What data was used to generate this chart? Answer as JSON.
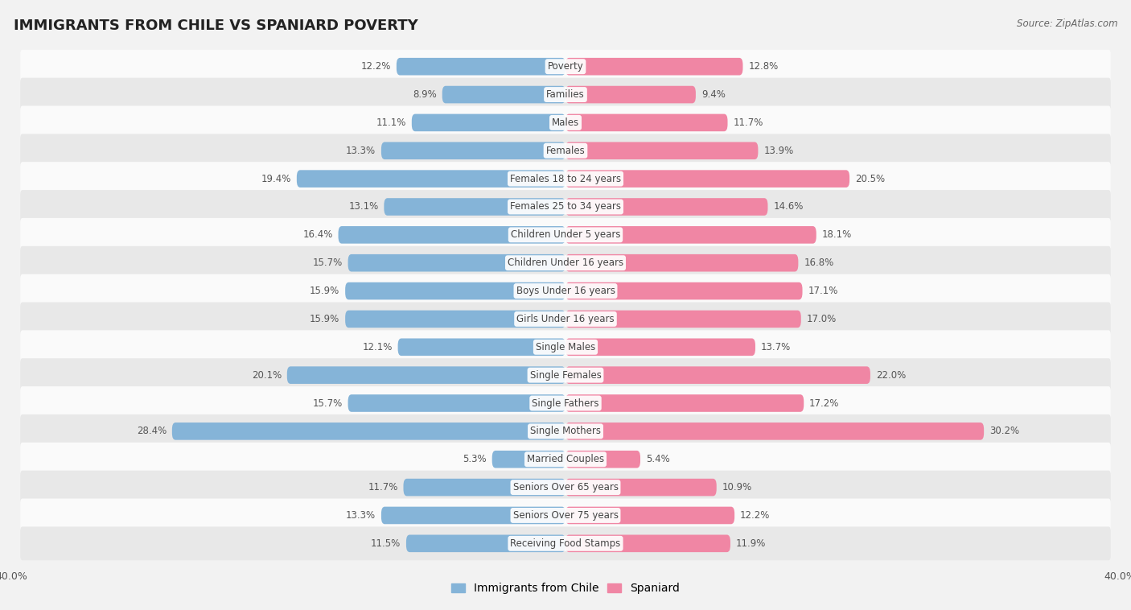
{
  "title": "IMMIGRANTS FROM CHILE VS SPANIARD POVERTY",
  "source": "Source: ZipAtlas.com",
  "categories": [
    "Poverty",
    "Families",
    "Males",
    "Females",
    "Females 18 to 24 years",
    "Females 25 to 34 years",
    "Children Under 5 years",
    "Children Under 16 years",
    "Boys Under 16 years",
    "Girls Under 16 years",
    "Single Males",
    "Single Females",
    "Single Fathers",
    "Single Mothers",
    "Married Couples",
    "Seniors Over 65 years",
    "Seniors Over 75 years",
    "Receiving Food Stamps"
  ],
  "chile_values": [
    12.2,
    8.9,
    11.1,
    13.3,
    19.4,
    13.1,
    16.4,
    15.7,
    15.9,
    15.9,
    12.1,
    20.1,
    15.7,
    28.4,
    5.3,
    11.7,
    13.3,
    11.5
  ],
  "spaniard_values": [
    12.8,
    9.4,
    11.7,
    13.9,
    20.5,
    14.6,
    18.1,
    16.8,
    17.1,
    17.0,
    13.7,
    22.0,
    17.2,
    30.2,
    5.4,
    10.9,
    12.2,
    11.9
  ],
  "chile_color": "#85b4d8",
  "spaniard_color": "#f086a4",
  "background_color": "#f2f2f2",
  "row_light": "#fafafa",
  "row_dark": "#e8e8e8",
  "xlim": 40.0,
  "bar_height": 0.62,
  "label_fontsize": 8.5,
  "title_fontsize": 13,
  "legend_labels": [
    "Immigrants from Chile",
    "Spaniard"
  ]
}
